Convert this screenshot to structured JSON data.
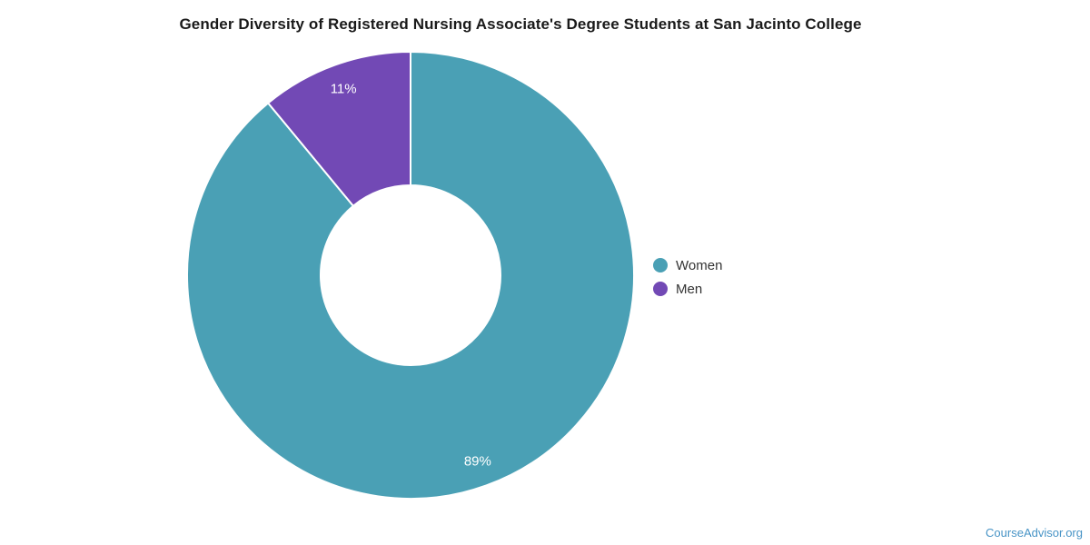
{
  "page": {
    "title": "Gender Diversity of Registered Nursing Associate's Degree Students at San Jacinto College",
    "footer_link_text": "CourseAdvisor.org"
  },
  "colors": {
    "title_text": "#1a1a1a",
    "legend_text": "#333333",
    "slice_label_text": "#ffffff",
    "footer_link": "#4894c6",
    "women_teal": "#4aa0b5",
    "men_purple": "#7249b5"
  },
  "chart_data": {
    "type": "pie",
    "subtype": "donut",
    "title": "Gender Diversity of Registered Nursing Associate's Degree Students at San Jacinto College",
    "categories": [
      "Women",
      "Men"
    ],
    "values": [
      89,
      11
    ],
    "unit": "%",
    "slice_labels": [
      "89%",
      "11%"
    ],
    "colors": [
      "#4aa0b5",
      "#7249b5"
    ],
    "legend_position": "right",
    "legend_marker": "circle",
    "start_angle_deg": 0,
    "direction": "clockwise",
    "inner_radius_ratio": 0.4,
    "separator_color": "#ffffff"
  }
}
